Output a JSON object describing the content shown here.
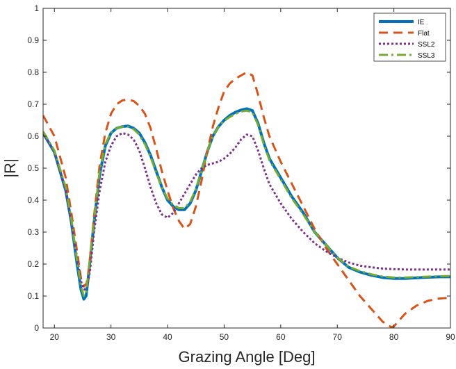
{
  "chart_data": {
    "type": "line",
    "title": "",
    "xlabel": "Grazing Angle [Deg]",
    "ylabel": "|R|",
    "xlim": [
      18,
      90
    ],
    "ylim": [
      0,
      1
    ],
    "xticks": [
      20,
      30,
      40,
      50,
      60,
      70,
      80,
      90
    ],
    "yticks": [
      0,
      0.1,
      0.2,
      0.3,
      0.4,
      0.5,
      0.6,
      0.7,
      0.8,
      0.9,
      1
    ],
    "grid": false,
    "legend_position": "top-right",
    "series": [
      {
        "name": "IE",
        "color": "#0072BD",
        "style": "solid",
        "x": [
          18,
          20,
          22,
          23,
          24,
          24.7,
          25.2,
          25.6,
          26,
          27,
          28,
          29,
          30,
          31,
          32,
          33,
          34,
          35,
          36,
          37,
          38,
          39,
          40,
          41,
          42,
          43,
          44,
          45,
          46,
          47,
          48,
          49,
          50,
          51,
          52,
          53,
          54,
          55,
          56,
          57,
          58,
          60,
          62,
          64,
          66,
          68,
          70,
          72,
          74,
          76,
          78,
          80,
          82,
          85,
          88,
          90
        ],
        "y": [
          0.61,
          0.55,
          0.43,
          0.33,
          0.2,
          0.12,
          0.09,
          0.1,
          0.16,
          0.33,
          0.48,
          0.57,
          0.61,
          0.625,
          0.63,
          0.632,
          0.625,
          0.61,
          0.58,
          0.54,
          0.49,
          0.44,
          0.4,
          0.38,
          0.37,
          0.37,
          0.39,
          0.43,
          0.49,
          0.55,
          0.6,
          0.63,
          0.65,
          0.665,
          0.675,
          0.682,
          0.686,
          0.68,
          0.64,
          0.58,
          0.53,
          0.47,
          0.41,
          0.36,
          0.3,
          0.26,
          0.22,
          0.19,
          0.175,
          0.165,
          0.158,
          0.155,
          0.155,
          0.158,
          0.16,
          0.16
        ]
      },
      {
        "name": "Flat",
        "color": "#D95319",
        "style": "dashed",
        "x": [
          18,
          20,
          22,
          23,
          24,
          24.7,
          25.2,
          25.7,
          26.2,
          27,
          28,
          29,
          30,
          31,
          32,
          33,
          34,
          35,
          36,
          37,
          38,
          39,
          40,
          41,
          42,
          43,
          44,
          45,
          46,
          47,
          48,
          49,
          50,
          51,
          52,
          53,
          54,
          55,
          56,
          57,
          58,
          60,
          62,
          64,
          66,
          68,
          70,
          72,
          74,
          76,
          78,
          79.5,
          80,
          81,
          82,
          84,
          86,
          88,
          90
        ],
        "y": [
          0.665,
          0.6,
          0.47,
          0.36,
          0.24,
          0.155,
          0.13,
          0.14,
          0.2,
          0.35,
          0.51,
          0.61,
          0.67,
          0.7,
          0.712,
          0.715,
          0.71,
          0.695,
          0.67,
          0.625,
          0.56,
          0.49,
          0.43,
          0.375,
          0.335,
          0.31,
          0.325,
          0.38,
          0.46,
          0.55,
          0.63,
          0.69,
          0.74,
          0.765,
          0.78,
          0.79,
          0.8,
          0.79,
          0.73,
          0.66,
          0.6,
          0.52,
          0.45,
          0.38,
          0.31,
          0.25,
          0.2,
          0.15,
          0.1,
          0.06,
          0.02,
          0.003,
          0.005,
          0.025,
          0.045,
          0.07,
          0.085,
          0.092,
          0.095
        ]
      },
      {
        "name": "SSL2",
        "color": "#7E2F8E",
        "style": "dotted",
        "x": [
          18,
          20,
          22,
          23,
          24,
          24.8,
          25.3,
          25.8,
          26.3,
          27,
          28,
          29,
          30,
          31,
          32,
          33,
          34,
          35,
          36,
          37,
          38,
          39,
          40,
          41,
          42,
          43,
          44,
          45,
          46,
          47,
          48,
          49,
          50,
          51,
          52,
          53,
          54,
          55,
          56,
          57,
          58,
          60,
          62,
          64,
          66,
          68,
          70,
          72,
          74,
          76,
          78,
          80,
          82,
          85,
          88,
          90
        ],
        "y": [
          0.61,
          0.55,
          0.43,
          0.33,
          0.22,
          0.14,
          0.12,
          0.13,
          0.18,
          0.3,
          0.43,
          0.52,
          0.57,
          0.6,
          0.61,
          0.605,
          0.59,
          0.555,
          0.5,
          0.44,
          0.39,
          0.355,
          0.345,
          0.36,
          0.39,
          0.42,
          0.45,
          0.48,
          0.5,
          0.51,
          0.515,
          0.52,
          0.53,
          0.545,
          0.565,
          0.59,
          0.605,
          0.6,
          0.555,
          0.5,
          0.45,
          0.39,
          0.34,
          0.3,
          0.265,
          0.24,
          0.22,
          0.205,
          0.195,
          0.19,
          0.186,
          0.184,
          0.183,
          0.183,
          0.183,
          0.183
        ]
      },
      {
        "name": "SSL3",
        "color": "#77AC30",
        "style": "dashdot",
        "x": [
          18,
          20,
          22,
          23,
          24,
          24.7,
          25.2,
          25.6,
          26,
          27,
          28,
          29,
          30,
          31,
          32,
          33,
          34,
          35,
          36,
          37,
          38,
          39,
          40,
          41,
          42,
          43,
          44,
          45,
          46,
          47,
          48,
          49,
          50,
          51,
          52,
          53,
          54,
          55,
          56,
          57,
          58,
          60,
          62,
          64,
          66,
          68,
          70,
          72,
          74,
          76,
          78,
          80,
          82,
          85,
          88,
          90
        ],
        "y": [
          0.615,
          0.555,
          0.44,
          0.34,
          0.21,
          0.13,
          0.1,
          0.11,
          0.17,
          0.34,
          0.49,
          0.575,
          0.612,
          0.625,
          0.63,
          0.63,
          0.622,
          0.605,
          0.575,
          0.535,
          0.485,
          0.44,
          0.405,
          0.385,
          0.375,
          0.375,
          0.395,
          0.435,
          0.49,
          0.55,
          0.6,
          0.63,
          0.648,
          0.66,
          0.67,
          0.677,
          0.68,
          0.675,
          0.635,
          0.575,
          0.525,
          0.465,
          0.405,
          0.355,
          0.3,
          0.26,
          0.22,
          0.192,
          0.178,
          0.168,
          0.161,
          0.158,
          0.158,
          0.16,
          0.162,
          0.163
        ]
      }
    ]
  }
}
